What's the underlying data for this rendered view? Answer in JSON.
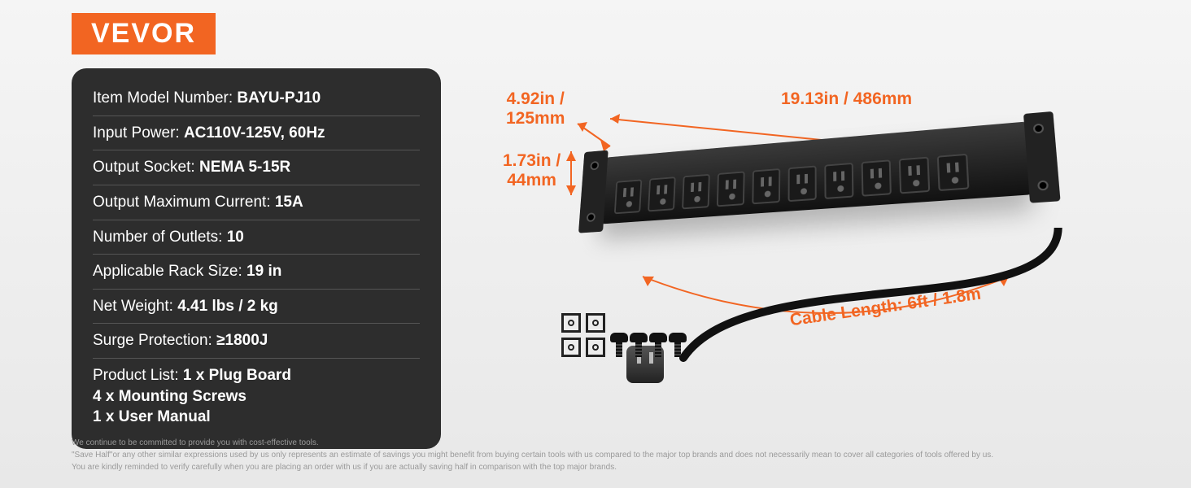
{
  "brand": "VEVOR",
  "colors": {
    "accent": "#f26522",
    "card_bg": "#2d2d2d",
    "card_divider": "#555555",
    "text_light": "#ffffff",
    "footnote": "#9a9a9a",
    "page_bg_top": "#f5f5f5",
    "page_bg_bottom": "#e8e8e8",
    "product_black": "#1a1a1a"
  },
  "specs": [
    {
      "label": "Item Model Number: ",
      "value": "BAYU-PJ10"
    },
    {
      "label": "Input Power: ",
      "value": "AC110V-125V, 60Hz"
    },
    {
      "label": "Output Socket: ",
      "value": "NEMA 5-15R"
    },
    {
      "label": "Output Maximum Current: ",
      "value": "15A"
    },
    {
      "label": "Number of Outlets: ",
      "value": "10"
    },
    {
      "label": "Applicable Rack Size: ",
      "value": "19 in"
    },
    {
      "label": "Net Weight: ",
      "value": "4.41 lbs / 2 kg"
    },
    {
      "label": "Surge Protection: ",
      "value": "≥1800J"
    },
    {
      "label": "Product List: ",
      "value": "1 x Plug Board\n4 x Mounting Screws\n1 x User Manual"
    }
  ],
  "dimensions": {
    "depth": {
      "text": "4.92in /\n125mm",
      "in": 4.92,
      "mm": 125
    },
    "width": {
      "text": "19.13in / 486mm",
      "in": 19.13,
      "mm": 486
    },
    "height": {
      "text": "1.73in /\n44mm",
      "in": 1.73,
      "mm": 44
    },
    "cable": {
      "text": "Cable Length: 6ft / 1.8m",
      "ft": 6,
      "m": 1.8
    }
  },
  "product": {
    "outlet_count": 10,
    "included": {
      "cage_nuts": 4,
      "screws": 4
    }
  },
  "footnote_lines": [
    "We continue to be committed to provide you with cost-effective tools.",
    "\"Save Half\"or any other similar expressions used by us only represents an estimate of savings you might benefit from buying certain tools with us compared to the major top brands and does not necessarily mean to cover all categories of tools offered by us.",
    "You are kindly reminded to verify carefully when you are placing an order with us if you are actually saving half in comparison with the top major brands."
  ]
}
